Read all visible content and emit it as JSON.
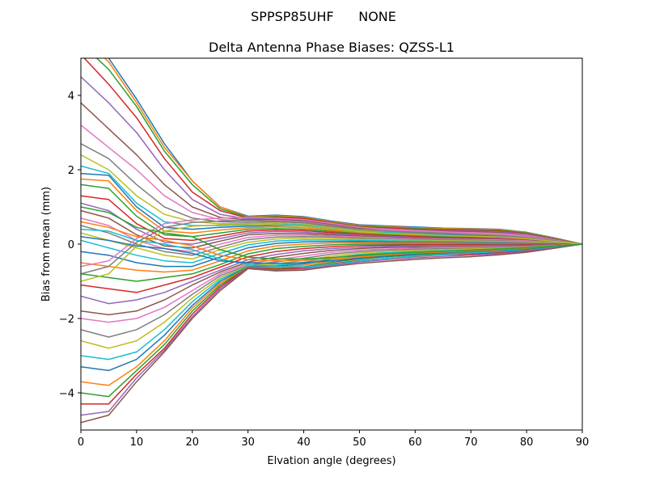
{
  "figure": {
    "suptitle": "SPPSP85UHF      NONE"
  },
  "chart_data": {
    "type": "line",
    "title": "Delta Antenna Phase Biases: QZSS-L1",
    "xlabel": "Elvation angle (degrees)",
    "ylabel": "Bias from mean (mm)",
    "xlim": [
      0,
      90
    ],
    "ylim": [
      -5,
      5
    ],
    "xticks": [
      0,
      10,
      20,
      30,
      40,
      50,
      60,
      70,
      80,
      90
    ],
    "xtick_labels": [
      "0",
      "10",
      "20",
      "30",
      "40",
      "50",
      "60",
      "70",
      "80",
      "90"
    ],
    "yticks": [
      -4,
      -2,
      0,
      2,
      4
    ],
    "ytick_labels": [
      "−4",
      "−2",
      "0",
      "2",
      "4"
    ],
    "grid": false,
    "legend": false,
    "colors": [
      "#1f77b4",
      "#ff7f0e",
      "#2ca02c",
      "#d62728",
      "#9467bd",
      "#8c564b",
      "#e377c2",
      "#7f7f7f",
      "#bcbd22",
      "#17becf"
    ],
    "x": [
      0,
      5,
      10,
      15,
      20,
      25,
      30,
      35,
      40,
      45,
      50,
      55,
      60,
      65,
      70,
      75,
      80,
      85,
      90
    ],
    "series": [
      {
        "values": [
          5.8,
          5.0,
          3.9,
          2.7,
          1.7,
          1.0,
          0.75,
          0.78,
          0.74,
          0.62,
          0.52,
          0.49,
          0.46,
          0.43,
          0.42,
          0.4,
          0.32,
          0.17,
          0.0
        ]
      },
      {
        "values": [
          5.6,
          4.9,
          3.8,
          2.6,
          1.7,
          1.0,
          0.73,
          0.76,
          0.72,
          0.6,
          0.5,
          0.47,
          0.44,
          0.42,
          0.41,
          0.39,
          0.31,
          0.16,
          0.0
        ]
      },
      {
        "values": [
          5.4,
          4.7,
          3.7,
          2.5,
          1.6,
          0.95,
          0.72,
          0.74,
          0.7,
          0.58,
          0.48,
          0.45,
          0.42,
          0.4,
          0.39,
          0.37,
          0.3,
          0.15,
          0.0
        ]
      },
      {
        "values": [
          5.1,
          4.3,
          3.4,
          2.3,
          1.4,
          0.9,
          0.7,
          0.72,
          0.69,
          0.57,
          0.46,
          0.43,
          0.4,
          0.38,
          0.37,
          0.35,
          0.28,
          0.14,
          0.0
        ]
      },
      {
        "values": [
          4.5,
          3.8,
          3.0,
          2.0,
          1.2,
          0.8,
          0.68,
          0.7,
          0.66,
          0.55,
          0.44,
          0.41,
          0.38,
          0.36,
          0.35,
          0.33,
          0.27,
          0.13,
          0.0
        ]
      },
      {
        "values": [
          3.8,
          3.1,
          2.4,
          1.6,
          1.0,
          0.72,
          0.65,
          0.67,
          0.63,
          0.52,
          0.42,
          0.39,
          0.36,
          0.34,
          0.33,
          0.31,
          0.25,
          0.12,
          0.0
        ]
      },
      {
        "values": [
          3.2,
          2.6,
          2.0,
          1.3,
          0.85,
          0.66,
          0.62,
          0.64,
          0.6,
          0.5,
          0.4,
          0.37,
          0.34,
          0.32,
          0.31,
          0.29,
          0.24,
          0.11,
          0.0
        ]
      },
      {
        "values": [
          2.7,
          2.3,
          1.6,
          1.0,
          0.7,
          0.6,
          0.58,
          0.6,
          0.57,
          0.47,
          0.38,
          0.35,
          0.32,
          0.3,
          0.29,
          0.27,
          0.22,
          0.1,
          0.0
        ]
      },
      {
        "values": [
          2.4,
          2.0,
          1.3,
          0.8,
          0.6,
          0.55,
          0.55,
          0.57,
          0.54,
          0.44,
          0.36,
          0.33,
          0.3,
          0.28,
          0.27,
          0.25,
          0.2,
          0.1,
          0.0
        ]
      },
      {
        "values": [
          2.1,
          1.9,
          1.1,
          0.6,
          0.5,
          0.5,
          0.52,
          0.54,
          0.51,
          0.42,
          0.34,
          0.31,
          0.28,
          0.26,
          0.25,
          0.23,
          0.19,
          0.09,
          0.0
        ]
      },
      {
        "values": [
          1.9,
          1.85,
          1.0,
          0.45,
          0.4,
          0.45,
          0.48,
          0.5,
          0.48,
          0.4,
          0.32,
          0.29,
          0.26,
          0.24,
          0.23,
          0.21,
          0.17,
          0.08,
          0.0
        ]
      },
      {
        "values": [
          1.75,
          1.7,
          0.9,
          0.35,
          0.3,
          0.38,
          0.44,
          0.46,
          0.44,
          0.37,
          0.3,
          0.27,
          0.24,
          0.22,
          0.21,
          0.19,
          0.16,
          0.08,
          0.0
        ]
      },
      {
        "values": [
          1.6,
          1.5,
          0.75,
          0.25,
          0.2,
          0.3,
          0.4,
          0.42,
          0.4,
          0.34,
          0.28,
          0.25,
          0.22,
          0.2,
          0.19,
          0.17,
          0.14,
          0.07,
          0.0
        ]
      },
      {
        "values": [
          1.3,
          1.2,
          0.55,
          0.15,
          0.1,
          0.22,
          0.35,
          0.38,
          0.36,
          0.31,
          0.26,
          0.23,
          0.2,
          0.18,
          0.17,
          0.16,
          0.13,
          0.06,
          0.0
        ]
      },
      {
        "values": [
          1.1,
          0.9,
          0.4,
          0.05,
          0.0,
          0.15,
          0.3,
          0.34,
          0.32,
          0.28,
          0.24,
          0.21,
          0.18,
          0.16,
          0.15,
          0.14,
          0.11,
          0.05,
          0.0
        ]
      },
      {
        "values": [
          0.9,
          0.7,
          0.25,
          -0.05,
          -0.1,
          0.08,
          0.25,
          0.29,
          0.28,
          0.25,
          0.21,
          0.19,
          0.16,
          0.15,
          0.14,
          0.12,
          0.1,
          0.05,
          0.0
        ]
      },
      {
        "values": [
          0.7,
          0.5,
          0.1,
          -0.12,
          -0.2,
          0.0,
          0.18,
          0.24,
          0.24,
          0.22,
          0.19,
          0.17,
          0.14,
          0.13,
          0.12,
          0.11,
          0.09,
          0.04,
          0.0
        ]
      },
      {
        "values": [
          0.5,
          0.3,
          0.0,
          -0.2,
          -0.3,
          -0.08,
          0.12,
          0.19,
          0.2,
          0.19,
          0.16,
          0.14,
          0.12,
          0.11,
          0.1,
          0.09,
          0.07,
          0.03,
          0.0
        ]
      },
      {
        "values": [
          0.3,
          0.1,
          -0.1,
          -0.3,
          -0.4,
          -0.15,
          0.05,
          0.14,
          0.16,
          0.15,
          0.13,
          0.12,
          0.1,
          0.09,
          0.08,
          0.07,
          0.06,
          0.03,
          0.0
        ]
      },
      {
        "values": [
          0.1,
          -0.1,
          -0.3,
          -0.45,
          -0.5,
          -0.25,
          -0.02,
          0.08,
          0.11,
          0.11,
          0.1,
          0.09,
          0.08,
          0.07,
          0.06,
          0.05,
          0.04,
          0.02,
          0.0
        ]
      },
      {
        "values": [
          -0.2,
          -0.3,
          -0.5,
          -0.6,
          -0.6,
          -0.35,
          -0.1,
          0.02,
          0.06,
          0.07,
          0.07,
          0.06,
          0.05,
          0.05,
          0.04,
          0.04,
          0.03,
          0.01,
          0.0
        ]
      },
      {
        "values": [
          -0.5,
          -0.6,
          -0.7,
          -0.75,
          -0.7,
          -0.45,
          -0.18,
          -0.05,
          0.0,
          0.03,
          0.04,
          0.03,
          0.03,
          0.03,
          0.02,
          0.02,
          0.02,
          0.01,
          0.0
        ]
      },
      {
        "values": [
          -0.8,
          -0.9,
          -1.0,
          -0.9,
          -0.8,
          -0.55,
          -0.26,
          -0.12,
          -0.06,
          -0.02,
          0.0,
          0.0,
          0.0,
          0.0,
          0.0,
          0.0,
          0.0,
          0.0,
          0.0
        ]
      },
      {
        "values": [
          -1.1,
          -1.2,
          -1.3,
          -1.1,
          -0.9,
          -0.62,
          -0.34,
          -0.2,
          -0.12,
          -0.07,
          -0.04,
          -0.03,
          -0.02,
          -0.02,
          -0.02,
          -0.02,
          -0.01,
          0.0,
          0.0
        ]
      },
      {
        "values": [
          -1.4,
          -1.6,
          -1.5,
          -1.3,
          -1.0,
          -0.7,
          -0.42,
          -0.28,
          -0.18,
          -0.12,
          -0.08,
          -0.06,
          -0.05,
          -0.04,
          -0.04,
          -0.03,
          -0.03,
          -0.01,
          0.0
        ]
      },
      {
        "values": [
          -1.8,
          -1.9,
          -1.8,
          -1.5,
          -1.1,
          -0.75,
          -0.48,
          -0.35,
          -0.25,
          -0.17,
          -0.12,
          -0.09,
          -0.08,
          -0.07,
          -0.06,
          -0.05,
          -0.04,
          -0.02,
          0.0
        ]
      },
      {
        "values": [
          -2.0,
          -2.1,
          -2.0,
          -1.7,
          -1.25,
          -0.8,
          -0.52,
          -0.42,
          -0.32,
          -0.22,
          -0.16,
          -0.13,
          -0.11,
          -0.09,
          -0.08,
          -0.07,
          -0.06,
          -0.03,
          0.0
        ]
      },
      {
        "values": [
          -2.3,
          -2.5,
          -2.3,
          -1.9,
          -1.35,
          -0.85,
          -0.56,
          -0.48,
          -0.38,
          -0.27,
          -0.2,
          -0.16,
          -0.14,
          -0.12,
          -0.11,
          -0.09,
          -0.07,
          -0.03,
          0.0
        ]
      },
      {
        "values": [
          -2.6,
          -2.8,
          -2.6,
          -2.1,
          -1.45,
          -0.9,
          -0.58,
          -0.53,
          -0.44,
          -0.32,
          -0.24,
          -0.2,
          -0.17,
          -0.15,
          -0.13,
          -0.11,
          -0.09,
          -0.04,
          0.0
        ]
      },
      {
        "values": [
          -3.0,
          -3.1,
          -2.9,
          -2.3,
          -1.55,
          -0.95,
          -0.6,
          -0.57,
          -0.49,
          -0.37,
          -0.28,
          -0.23,
          -0.2,
          -0.18,
          -0.16,
          -0.13,
          -0.1,
          -0.05,
          0.0
        ]
      },
      {
        "values": [
          -3.3,
          -3.4,
          -3.1,
          -2.45,
          -1.65,
          -1.0,
          -0.61,
          -0.6,
          -0.53,
          -0.41,
          -0.32,
          -0.27,
          -0.23,
          -0.21,
          -0.18,
          -0.15,
          -0.12,
          -0.06,
          0.0
        ]
      },
      {
        "values": [
          -3.7,
          -3.8,
          -3.3,
          -2.6,
          -1.72,
          -1.05,
          -0.62,
          -0.63,
          -0.57,
          -0.45,
          -0.36,
          -0.3,
          -0.26,
          -0.23,
          -0.21,
          -0.17,
          -0.14,
          -0.07,
          0.0
        ]
      },
      {
        "values": [
          -4.0,
          -4.1,
          -3.4,
          -2.7,
          -1.8,
          -1.1,
          -0.63,
          -0.66,
          -0.61,
          -0.49,
          -0.4,
          -0.34,
          -0.29,
          -0.26,
          -0.24,
          -0.2,
          -0.16,
          -0.08,
          0.0
        ]
      },
      {
        "values": [
          -4.3,
          -4.3,
          -3.5,
          -2.8,
          -1.88,
          -1.15,
          -0.64,
          -0.68,
          -0.64,
          -0.53,
          -0.44,
          -0.38,
          -0.33,
          -0.29,
          -0.27,
          -0.23,
          -0.18,
          -0.09,
          0.0
        ]
      },
      {
        "values": [
          -4.6,
          -4.5,
          -3.6,
          -2.85,
          -1.95,
          -1.2,
          -0.65,
          -0.7,
          -0.67,
          -0.57,
          -0.48,
          -0.42,
          -0.37,
          -0.33,
          -0.3,
          -0.26,
          -0.2,
          -0.1,
          0.0
        ]
      },
      {
        "values": [
          -4.8,
          -4.6,
          -3.7,
          -2.9,
          -2.0,
          -1.25,
          -0.66,
          -0.72,
          -0.7,
          -0.6,
          -0.52,
          -0.46,
          -0.41,
          -0.37,
          -0.34,
          -0.29,
          -0.22,
          -0.11,
          0.0
        ]
      },
      {
        "values": [
          -0.6,
          -0.45,
          0.15,
          0.55,
          0.65,
          0.7,
          0.72,
          0.7,
          0.66,
          0.56,
          0.45,
          0.4,
          0.36,
          0.33,
          0.3,
          0.27,
          0.21,
          0.1,
          0.0
        ]
      },
      {
        "values": [
          -0.8,
          -0.6,
          0.05,
          0.45,
          0.58,
          0.62,
          0.64,
          0.62,
          0.58,
          0.49,
          0.4,
          0.35,
          0.31,
          0.28,
          0.26,
          0.23,
          0.18,
          0.09,
          0.0
        ]
      },
      {
        "values": [
          -1.0,
          -0.8,
          -0.05,
          0.35,
          0.48,
          0.52,
          0.54,
          0.52,
          0.48,
          0.41,
          0.33,
          0.29,
          0.26,
          0.23,
          0.21,
          0.19,
          0.15,
          0.07,
          0.0
        ]
      },
      {
        "values": [
          0.4,
          0.35,
          0.1,
          0.0,
          -0.15,
          -0.4,
          -0.55,
          -0.6,
          -0.62,
          -0.55,
          -0.45,
          -0.38,
          -0.32,
          -0.28,
          -0.24,
          -0.2,
          -0.15,
          -0.07,
          0.0
        ]
      },
      {
        "values": [
          0.2,
          0.1,
          -0.05,
          -0.12,
          -0.25,
          -0.45,
          -0.5,
          -0.52,
          -0.5,
          -0.45,
          -0.38,
          -0.32,
          -0.27,
          -0.23,
          -0.2,
          -0.17,
          -0.13,
          -0.06,
          0.0
        ]
      },
      {
        "values": [
          0.6,
          0.45,
          0.2,
          0.1,
          -0.05,
          -0.3,
          -0.42,
          -0.45,
          -0.44,
          -0.4,
          -0.34,
          -0.29,
          -0.24,
          -0.21,
          -0.18,
          -0.15,
          -0.11,
          -0.05,
          0.0
        ]
      },
      {
        "values": [
          1.0,
          0.85,
          0.45,
          0.3,
          0.2,
          -0.15,
          -0.35,
          -0.4,
          -0.4,
          -0.36,
          -0.3,
          -0.26,
          -0.22,
          -0.19,
          -0.16,
          -0.13,
          -0.1,
          -0.05,
          0.0
        ]
      }
    ]
  }
}
